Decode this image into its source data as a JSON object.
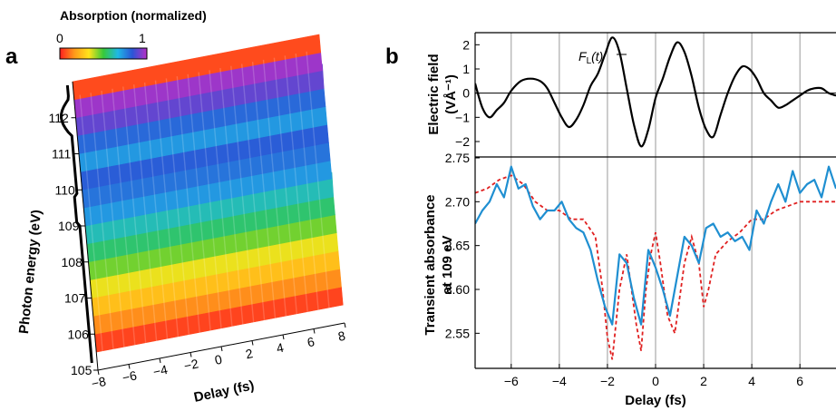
{
  "panel_a": {
    "letter": "a",
    "colorbar_title": "Absorption (normalized)",
    "colorbar_min": "0",
    "colorbar_max": "1",
    "colorbar_colors": [
      "#ff1f1f",
      "#ff9a1a",
      "#ffe41a",
      "#36c93a",
      "#1fb7e6",
      "#2b55d6",
      "#b62fc6"
    ]
  },
  "panel_b": {
    "letter": "b",
    "annotation_main": "F",
    "annotation_sub": "L",
    "annotation_tail": "(t)"
  },
  "colors": {
    "field_line": "#000000",
    "measured_line": "#1f8fd1",
    "model_line": "#e02020",
    "grid": "#9a9a9a"
  },
  "chart_data": [
    {
      "type": "surface",
      "title": "",
      "xlabel": "Delay (fs)",
      "ylabel": "Photon energy (eV)",
      "x_ticks": [
        "−8",
        "−6",
        "−4",
        "−2",
        "0",
        "2",
        "4",
        "6",
        "8"
      ],
      "y_ticks": [
        "105",
        "106",
        "107",
        "108",
        "109",
        "110",
        "111",
        "112"
      ],
      "xlim": [
        -8,
        8
      ],
      "ylim": [
        105,
        113
      ],
      "colorbar_range": [
        0,
        1
      ],
      "energy_bands": [
        {
          "energy": 105.5,
          "absorption": 0.05
        },
        {
          "energy": 106.0,
          "absorption": 0.15
        },
        {
          "energy": 106.5,
          "absorption": 0.25
        },
        {
          "energy": 107.0,
          "absorption": 0.35
        },
        {
          "energy": 107.5,
          "absorption": 0.45
        },
        {
          "energy": 108.0,
          "absorption": 0.55
        },
        {
          "energy": 108.5,
          "absorption": 0.62
        },
        {
          "energy": 109.0,
          "absorption": 0.72
        },
        {
          "energy": 109.5,
          "absorption": 0.78
        },
        {
          "energy": 110.0,
          "absorption": 0.82
        },
        {
          "energy": 110.5,
          "absorption": 0.72
        },
        {
          "energy": 111.0,
          "absorption": 0.8
        },
        {
          "energy": 111.5,
          "absorption": 0.9
        },
        {
          "energy": 112.0,
          "absorption": 0.97
        },
        {
          "energy": 112.5,
          "absorption": 0.06
        },
        {
          "energy": 113.0,
          "absorption": 0.45
        }
      ]
    },
    {
      "type": "line",
      "title": "",
      "xlabel": "Delay (fs)",
      "ylabel": "Electric field (VÅ⁻¹)",
      "xlim": [
        -7.5,
        7.5
      ],
      "ylim": [
        -2.6,
        2.5
      ],
      "x_ticks": [
        "−6",
        "−4",
        "−2",
        "0",
        "2",
        "4",
        "6"
      ],
      "y_ticks": [
        "−2",
        "−1",
        "0",
        "1",
        "2"
      ],
      "grid_x": true,
      "series": [
        {
          "name": "",
          "x": [
            -7.5,
            -7.2,
            -6.9,
            -6.6,
            -6.3,
            -6.0,
            -5.6,
            -5.2,
            -4.8,
            -4.5,
            -4.2,
            -3.9,
            -3.6,
            -3.3,
            -3.0,
            -2.7,
            -2.4,
            -2.1,
            -1.8,
            -1.5,
            -1.2,
            -0.9,
            -0.6,
            -0.3,
            0.0,
            0.3,
            0.6,
            0.9,
            1.2,
            1.5,
            1.8,
            2.1,
            2.4,
            2.7,
            3.0,
            3.3,
            3.6,
            3.9,
            4.2,
            4.5,
            4.8,
            5.1,
            5.4,
            5.7,
            6.0,
            6.3,
            6.6,
            6.9,
            7.2,
            7.5
          ],
          "values": [
            0.4,
            -0.6,
            -1.0,
            -0.7,
            -0.4,
            0.1,
            0.5,
            0.6,
            0.5,
            0.2,
            -0.4,
            -1.0,
            -1.4,
            -1.1,
            -0.5,
            0.3,
            0.8,
            1.6,
            2.3,
            1.7,
            0.2,
            -1.3,
            -2.2,
            -1.5,
            -0.2,
            0.6,
            1.5,
            2.1,
            1.7,
            0.7,
            -0.6,
            -1.5,
            -1.8,
            -0.9,
            0.0,
            0.7,
            1.1,
            1.0,
            0.6,
            0.0,
            -0.3,
            -0.6,
            -0.5,
            -0.3,
            -0.1,
            0.1,
            0.2,
            0.2,
            0.0,
            -0.1
          ]
        }
      ]
    },
    {
      "type": "line",
      "title": "",
      "xlabel": "Delay (fs)",
      "ylabel": "Transient absorbance at 109 eV",
      "xlim": [
        -7.5,
        7.5
      ],
      "ylim": [
        2.51,
        2.75
      ],
      "x_ticks": [
        "−6",
        "−4",
        "−2",
        "0",
        "2",
        "4",
        "6"
      ],
      "y_ticks": [
        "2.55",
        "2.60",
        "2.65",
        "2.70",
        "2.75"
      ],
      "grid_x": true,
      "series": [
        {
          "name": "",
          "style": "solid",
          "x": [
            -7.5,
            -7.2,
            -6.9,
            -6.6,
            -6.3,
            -6.0,
            -5.7,
            -5.4,
            -5.1,
            -4.8,
            -4.5,
            -4.2,
            -3.9,
            -3.6,
            -3.3,
            -3.0,
            -2.7,
            -2.4,
            -2.1,
            -1.8,
            -1.5,
            -1.2,
            -0.9,
            -0.6,
            -0.3,
            0.0,
            0.3,
            0.6,
            0.9,
            1.2,
            1.5,
            1.8,
            2.1,
            2.4,
            2.7,
            3.0,
            3.3,
            3.6,
            3.9,
            4.2,
            4.5,
            4.8,
            5.1,
            5.4,
            5.7,
            6.0,
            6.3,
            6.6,
            6.9,
            7.2,
            7.5
          ],
          "values": [
            2.675,
            2.69,
            2.7,
            2.72,
            2.705,
            2.74,
            2.715,
            2.72,
            2.695,
            2.68,
            2.69,
            2.69,
            2.7,
            2.68,
            2.67,
            2.665,
            2.645,
            2.61,
            2.58,
            2.56,
            2.64,
            2.63,
            2.59,
            2.56,
            2.645,
            2.625,
            2.6,
            2.57,
            2.615,
            2.66,
            2.65,
            2.63,
            2.67,
            2.675,
            2.66,
            2.665,
            2.655,
            2.66,
            2.645,
            2.69,
            2.675,
            2.7,
            2.72,
            2.7,
            2.735,
            2.71,
            2.72,
            2.725,
            2.705,
            2.74,
            2.715
          ]
        },
        {
          "name": "",
          "style": "dashed",
          "x": [
            -7.5,
            -7.0,
            -6.5,
            -6.0,
            -5.5,
            -5.0,
            -4.5,
            -4.0,
            -3.5,
            -3.0,
            -2.5,
            -2.2,
            -2.0,
            -1.8,
            -1.5,
            -1.2,
            -1.0,
            -0.8,
            -0.6,
            -0.4,
            -0.2,
            0.0,
            0.2,
            0.5,
            0.8,
            1.0,
            1.2,
            1.5,
            1.8,
            2.0,
            2.2,
            2.5,
            3.0,
            3.5,
            4.0,
            4.5,
            5.0,
            5.5,
            6.0,
            6.5,
            7.0,
            7.5
          ],
          "values": [
            2.71,
            2.715,
            2.725,
            2.73,
            2.72,
            2.7,
            2.69,
            2.69,
            2.68,
            2.68,
            2.66,
            2.6,
            2.545,
            2.52,
            2.6,
            2.64,
            2.6,
            2.56,
            2.53,
            2.6,
            2.64,
            2.665,
            2.63,
            2.57,
            2.55,
            2.59,
            2.63,
            2.66,
            2.63,
            2.58,
            2.6,
            2.64,
            2.655,
            2.665,
            2.68,
            2.68,
            2.69,
            2.695,
            2.7,
            2.7,
            2.7,
            2.7
          ]
        }
      ]
    }
  ]
}
